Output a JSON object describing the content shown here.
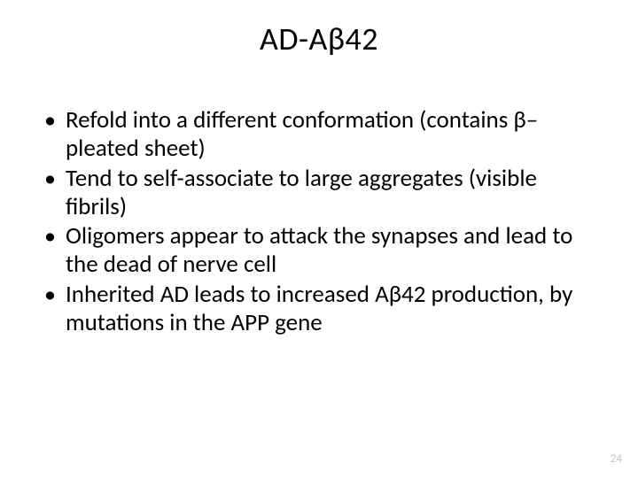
{
  "slide": {
    "title": "AD-Aβ42",
    "bullets": [
      "Refold into a different conformation (contains β–pleated sheet)",
      "Tend to self-associate to large aggregates (visible fibrils)",
      "Oligomers appear to attack the synapses and lead to the dead of nerve cell",
      "Inherited AD leads to increased Aβ42 production, by mutations in the APP gene"
    ],
    "page_number": "24"
  },
  "style": {
    "background_color": "#ffffff",
    "text_color": "#000000",
    "title_fontsize": 36,
    "body_fontsize": 27,
    "page_number_color": "#bfbfbf",
    "page_number_fontsize": 13,
    "font_family": "Calibri"
  }
}
